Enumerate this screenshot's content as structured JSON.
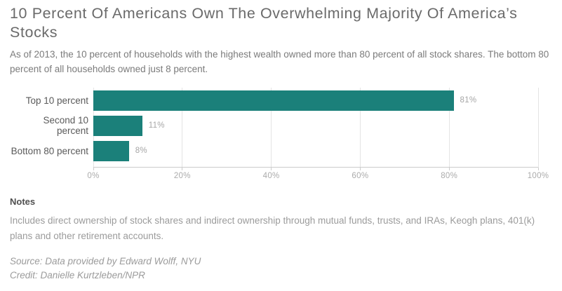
{
  "header": {
    "title": "10 Percent Of Americans Own The Overwhelming Majority Of America’s Stocks",
    "subtitle": "As of 2013, the 10 percent of households with the highest wealth owned more than 80 percent of all stock shares. The bottom 80 percent of all households owned just 8 percent."
  },
  "chart_data": {
    "type": "bar",
    "orientation": "horizontal",
    "title": "10 Percent Of Americans Own The Overwhelming Majority Of America’s Stocks",
    "categories": [
      "Top 10 percent",
      "Second 10 percent",
      "Bottom 80 percent"
    ],
    "values": [
      81,
      11,
      8
    ],
    "value_labels": [
      "81%",
      "11%",
      "8%"
    ],
    "x_ticks": [
      "0%",
      "20%",
      "40%",
      "60%",
      "80%",
      "100%"
    ],
    "x_tick_values": [
      0,
      20,
      40,
      60,
      80,
      100
    ],
    "xlim": [
      0,
      100
    ],
    "xlabel": "",
    "ylabel": "",
    "grid": true,
    "legend": false,
    "bar_color": "#1b807a"
  },
  "notes": {
    "heading": "Notes",
    "body": "Includes direct ownership of stock shares and indirect ownership through mutual funds, trusts, and IRAs, Keogh plans, 401(k) plans and other retirement accounts.",
    "source": "Source: Data provided by Edward Wolff, NYU",
    "credit": "Credit: Danielle Kurtzleben/NPR"
  }
}
